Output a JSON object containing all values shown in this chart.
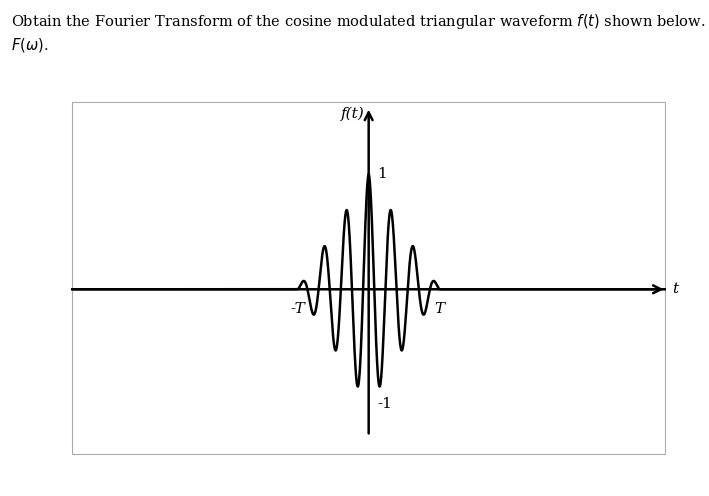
{
  "T": 1.0,
  "omega0": 20.0,
  "num_points": 8000,
  "xlim": [
    -4.2,
    4.2
  ],
  "ylim": [
    -1.45,
    1.65
  ],
  "bg_color": "#ffffff",
  "line_color": "#000000",
  "line_width": 1.8,
  "label_1": "1",
  "label_neg1": "-1",
  "label_T": "T",
  "label_negT": "-T",
  "axis_label_t": "t",
  "axis_label_ft": "f(t)",
  "annotation_fontsize": 11,
  "title_fontsize": 10.5,
  "title_line1": "Obtain the Fourier Transform of the cosine modulated triangular waveform $f(t)$ shown below.  Also plot",
  "title_line2": "$F(\\omega)$."
}
